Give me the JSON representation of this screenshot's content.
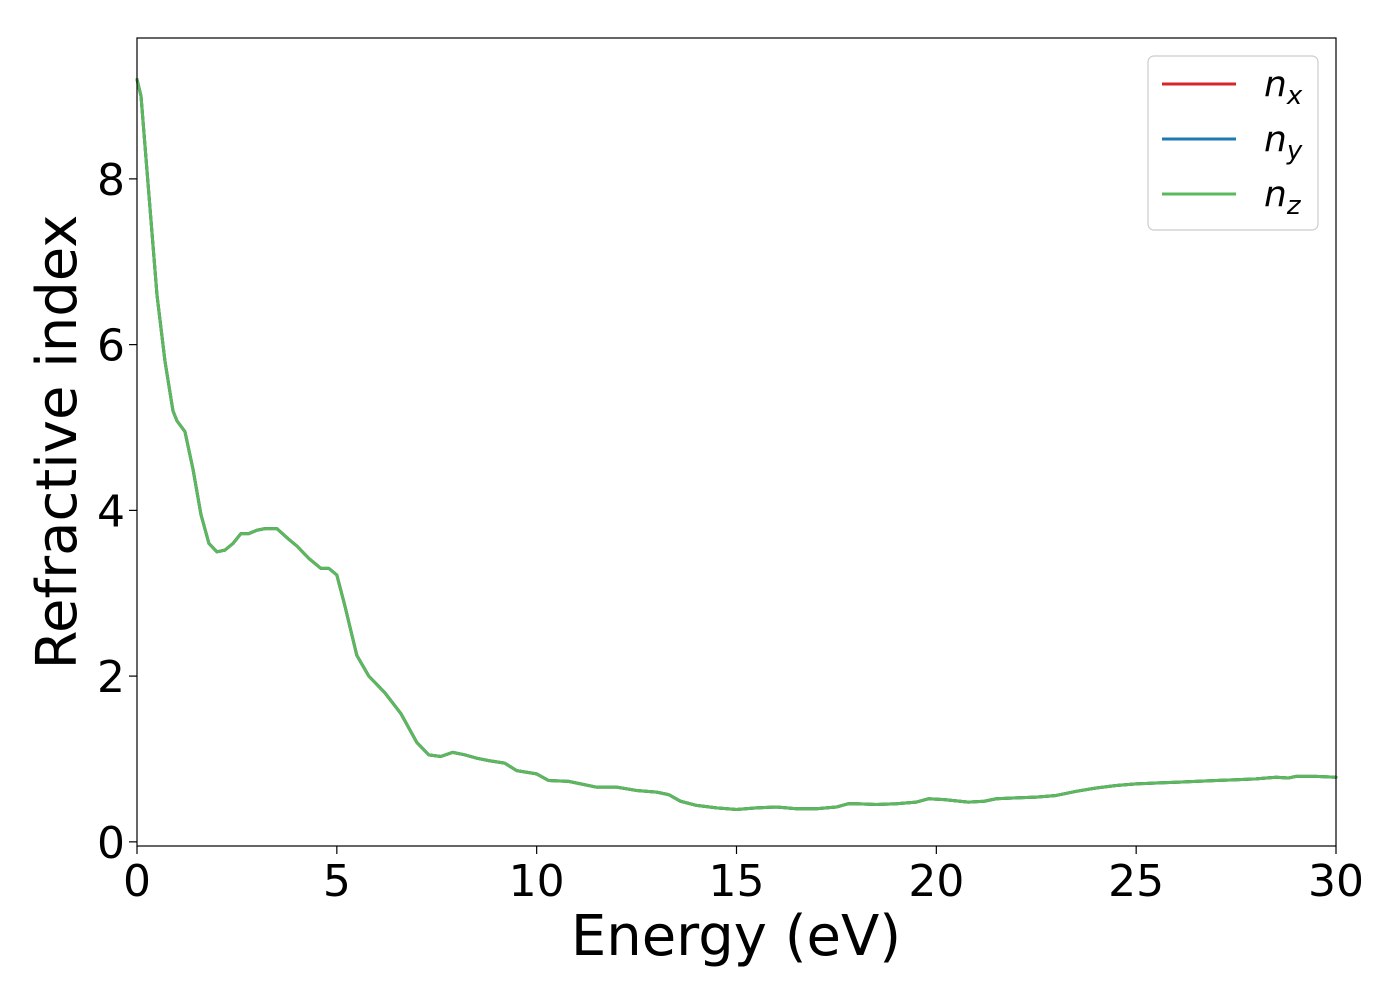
{
  "chart_data": {
    "type": "line",
    "xlabel": "Energy (eV)",
    "ylabel": "Refractive index",
    "xlim": [
      0,
      30
    ],
    "ylim": [
      -0.05,
      9.7
    ],
    "xticks": [
      0,
      5,
      10,
      15,
      20,
      25,
      30
    ],
    "yticks": [
      0,
      2,
      4,
      6,
      8
    ],
    "grid": false,
    "legend_position": "top-right",
    "x": [
      0,
      0.1,
      0.3,
      0.5,
      0.7,
      0.9,
      1.0,
      1.2,
      1.4,
      1.6,
      1.8,
      2.0,
      2.2,
      2.4,
      2.6,
      2.8,
      3.0,
      3.2,
      3.5,
      3.8,
      4.0,
      4.3,
      4.6,
      4.8,
      5.0,
      5.2,
      5.5,
      5.8,
      6.2,
      6.6,
      7.0,
      7.3,
      7.6,
      7.9,
      8.2,
      8.5,
      8.8,
      9.2,
      9.5,
      10.0,
      10.3,
      10.8,
      11.5,
      12.0,
      12.5,
      13.0,
      13.3,
      13.6,
      14.0,
      14.5,
      15.0,
      15.5,
      16.0,
      16.5,
      17.0,
      17.5,
      17.8,
      18.0,
      18.5,
      19.0,
      19.5,
      19.8,
      20.2,
      20.8,
      21.2,
      21.5,
      22.0,
      22.5,
      23.0,
      23.5,
      24.0,
      24.5,
      25.0,
      25.5,
      26.0,
      26.5,
      27.0,
      27.5,
      28.0,
      28.5,
      28.8,
      29.0,
      29.5,
      30.0
    ],
    "series": [
      {
        "name": "n_x",
        "color": "#d62728",
        "values": [
          9.2,
          9.0,
          7.8,
          6.6,
          5.8,
          5.2,
          5.08,
          4.95,
          4.5,
          3.95,
          3.6,
          3.5,
          3.52,
          3.6,
          3.72,
          3.72,
          3.76,
          3.78,
          3.78,
          3.65,
          3.57,
          3.42,
          3.3,
          3.3,
          3.22,
          2.85,
          2.25,
          2.0,
          1.8,
          1.55,
          1.2,
          1.05,
          1.03,
          1.08,
          1.05,
          1.01,
          0.98,
          0.95,
          0.86,
          0.82,
          0.74,
          0.73,
          0.66,
          0.66,
          0.62,
          0.6,
          0.57,
          0.49,
          0.44,
          0.41,
          0.39,
          0.41,
          0.42,
          0.4,
          0.4,
          0.42,
          0.46,
          0.46,
          0.45,
          0.46,
          0.48,
          0.52,
          0.51,
          0.48,
          0.49,
          0.52,
          0.53,
          0.54,
          0.56,
          0.61,
          0.65,
          0.68,
          0.7,
          0.71,
          0.72,
          0.73,
          0.74,
          0.75,
          0.76,
          0.78,
          0.77,
          0.79,
          0.79,
          0.78
        ]
      },
      {
        "name": "n_y",
        "color": "#1f77b4",
        "values": [
          9.2,
          9.0,
          7.8,
          6.6,
          5.8,
          5.2,
          5.08,
          4.95,
          4.5,
          3.95,
          3.6,
          3.5,
          3.52,
          3.6,
          3.72,
          3.72,
          3.76,
          3.78,
          3.78,
          3.65,
          3.57,
          3.42,
          3.3,
          3.3,
          3.22,
          2.85,
          2.25,
          2.0,
          1.8,
          1.55,
          1.2,
          1.05,
          1.03,
          1.08,
          1.05,
          1.01,
          0.98,
          0.95,
          0.86,
          0.82,
          0.74,
          0.73,
          0.66,
          0.66,
          0.62,
          0.6,
          0.57,
          0.49,
          0.44,
          0.41,
          0.39,
          0.41,
          0.42,
          0.4,
          0.4,
          0.42,
          0.46,
          0.46,
          0.45,
          0.46,
          0.48,
          0.52,
          0.51,
          0.48,
          0.49,
          0.52,
          0.53,
          0.54,
          0.56,
          0.61,
          0.65,
          0.68,
          0.7,
          0.71,
          0.72,
          0.73,
          0.74,
          0.75,
          0.76,
          0.78,
          0.77,
          0.79,
          0.79,
          0.78
        ]
      },
      {
        "name": "n_z",
        "color": "#5cb85c",
        "values": [
          9.2,
          9.0,
          7.8,
          6.6,
          5.8,
          5.2,
          5.08,
          4.95,
          4.5,
          3.95,
          3.6,
          3.5,
          3.52,
          3.6,
          3.72,
          3.72,
          3.76,
          3.78,
          3.78,
          3.65,
          3.57,
          3.42,
          3.3,
          3.3,
          3.22,
          2.85,
          2.25,
          2.0,
          1.8,
          1.55,
          1.2,
          1.05,
          1.03,
          1.08,
          1.05,
          1.01,
          0.98,
          0.95,
          0.86,
          0.82,
          0.74,
          0.73,
          0.66,
          0.66,
          0.62,
          0.6,
          0.57,
          0.49,
          0.44,
          0.41,
          0.39,
          0.41,
          0.42,
          0.4,
          0.4,
          0.42,
          0.46,
          0.46,
          0.45,
          0.46,
          0.48,
          0.52,
          0.51,
          0.48,
          0.49,
          0.52,
          0.53,
          0.54,
          0.56,
          0.61,
          0.65,
          0.68,
          0.7,
          0.71,
          0.72,
          0.73,
          0.74,
          0.75,
          0.76,
          0.78,
          0.77,
          0.79,
          0.79,
          0.78
        ]
      }
    ],
    "legend": [
      {
        "symbol": "n",
        "subscript": "x",
        "color": "#d62728"
      },
      {
        "symbol": "n",
        "subscript": "y",
        "color": "#1f77b4"
      },
      {
        "symbol": "n",
        "subscript": "z",
        "color": "#5cb85c"
      }
    ]
  }
}
